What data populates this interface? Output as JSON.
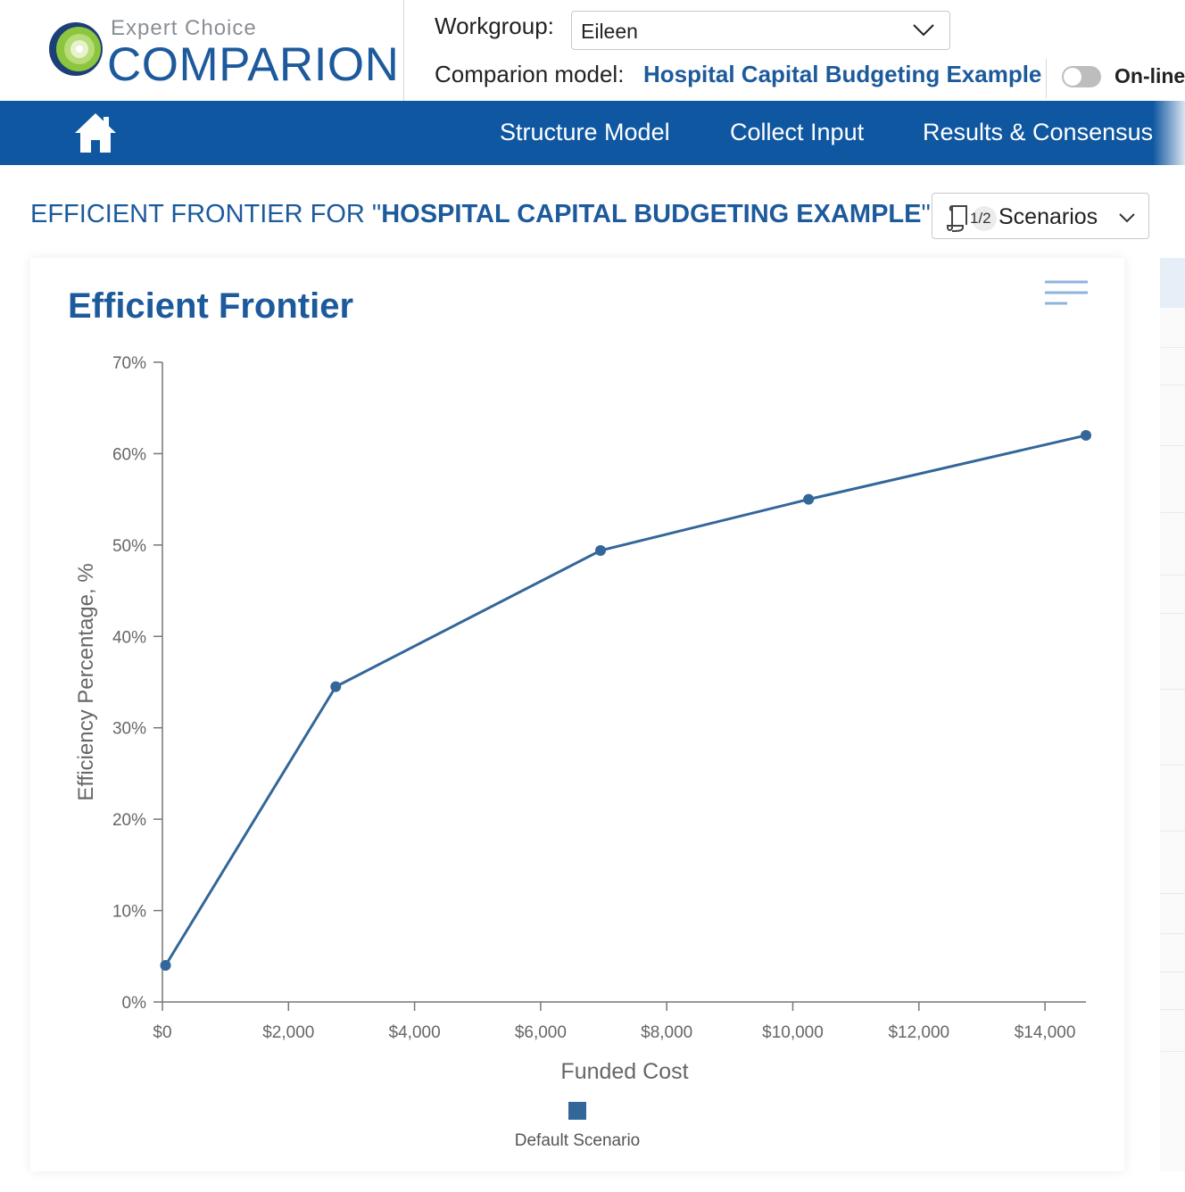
{
  "header": {
    "logo_sub": "Expert Choice",
    "logo_main": "COMPARION",
    "workgroup_label": "Workgroup:",
    "workgroup_value": "Eileen",
    "model_label": "Comparion model:",
    "model_name": "Hospital Capital Budgeting Example",
    "online_label": "On-line",
    "online_toggle_on": false
  },
  "nav": {
    "items": [
      {
        "label": "Structure Model"
      },
      {
        "label": "Collect Input"
      },
      {
        "label": "Results & Consensus"
      }
    ]
  },
  "page": {
    "title_prefix": "EFFICIENT FRONTIER FOR \"",
    "title_model": "HOSPITAL CAPITAL BUDGETING EXAMPLE",
    "title_suffix": "\"",
    "scenarios_count": "1/2",
    "scenarios_label": "Scenarios"
  },
  "colors": {
    "brand_blue": "#1d5a9c",
    "nav_blue": "#0f57a0",
    "series": "#336699"
  },
  "chart_data": {
    "type": "line",
    "title": "Efficient Frontier",
    "xlabel": "Funded Cost",
    "ylabel": "Efficiency Percentage, %",
    "x_ticks": [
      "$0",
      "$2,000",
      "$4,000",
      "$6,000",
      "$8,000",
      "$10,000",
      "$12,000",
      "$14,000"
    ],
    "y_ticks": [
      "0%",
      "10%",
      "20%",
      "30%",
      "40%",
      "50%",
      "60%",
      "70%"
    ],
    "xlim": [
      0,
      14650
    ],
    "ylim": [
      0,
      70
    ],
    "grid": false,
    "legend_position": "bottom",
    "series": [
      {
        "name": "Default Scenario",
        "x": [
          50,
          2750,
          6950,
          10250,
          14650
        ],
        "y": [
          4,
          34.5,
          49.4,
          55,
          62
        ]
      }
    ]
  }
}
